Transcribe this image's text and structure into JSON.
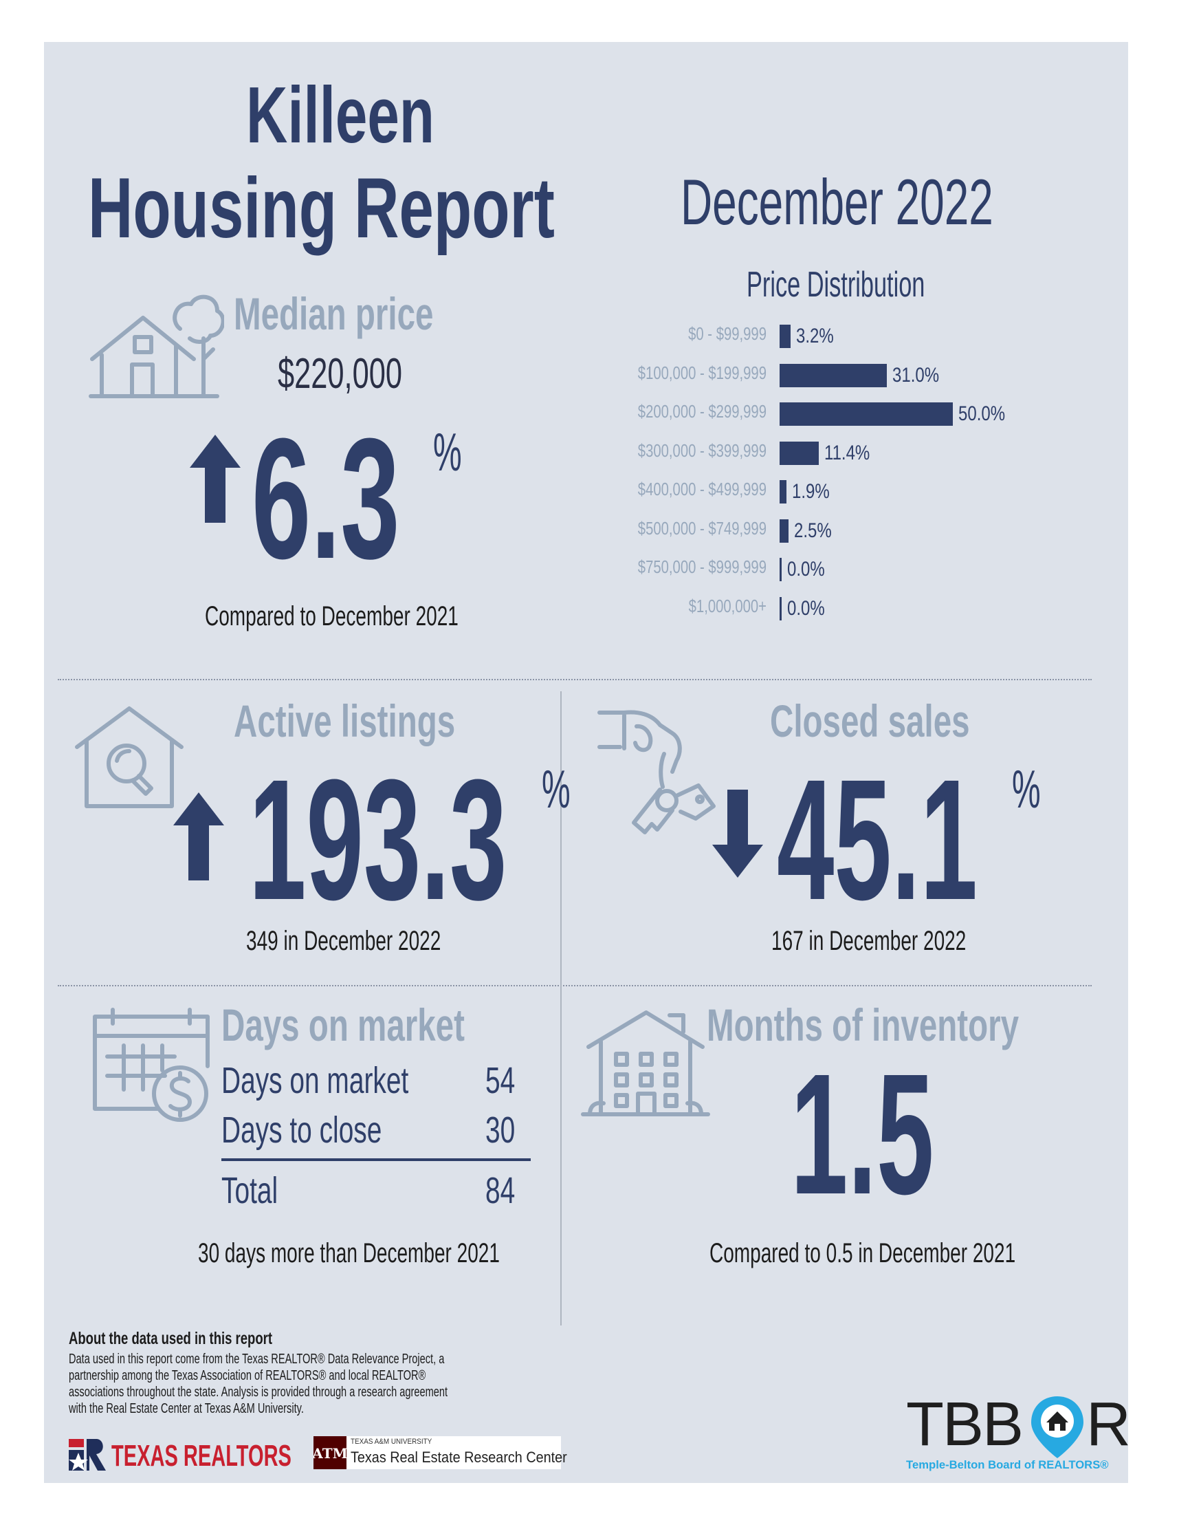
{
  "header": {
    "city": "Killeen",
    "title": "Housing Report",
    "period": "December 2022"
  },
  "median": {
    "label": "Median price",
    "value": "$220,000",
    "change": "6.3",
    "pct": "%",
    "direction": "up",
    "note": "Compared to December 2021"
  },
  "price_distribution": {
    "title": "Price Distribution",
    "rows": [
      {
        "range": "$0 - $99,999",
        "pct": 3.2,
        "label": "3.2%"
      },
      {
        "range": "$100,000 - $199,999",
        "pct": 31.0,
        "label": "31.0%"
      },
      {
        "range": "$200,000 - $299,999",
        "pct": 50.0,
        "label": "50.0%"
      },
      {
        "range": "$300,000 - $399,999",
        "pct": 11.4,
        "label": "11.4%"
      },
      {
        "range": "$400,000 - $499,999",
        "pct": 1.9,
        "label": "1.9%"
      },
      {
        "range": "$500,000 - $749,999",
        "pct": 2.5,
        "label": "2.5%"
      },
      {
        "range": "$750,000 - $999,999",
        "pct": 0.0,
        "label": "0.0%"
      },
      {
        "range": "$1,000,000+",
        "pct": 0.0,
        "label": "0.0%"
      }
    ]
  },
  "chart_data": {
    "type": "bar",
    "title": "Price Distribution",
    "categories": [
      "$0 - $99,999",
      "$100,000 - $199,999",
      "$200,000 - $299,999",
      "$300,000 - $399,999",
      "$400,000 - $499,999",
      "$500,000 - $749,999",
      "$750,000 - $999,999",
      "$1,000,000+"
    ],
    "values": [
      3.2,
      31.0,
      50.0,
      11.4,
      1.9,
      2.5,
      0.0,
      0.0
    ],
    "orientation": "horizontal",
    "unit": "%"
  },
  "active_listings": {
    "label": "Active listings",
    "change": "193.3",
    "pct": "%",
    "direction": "up",
    "note": "349 in December 2022"
  },
  "closed_sales": {
    "label": "Closed sales",
    "change": "45.1",
    "pct": "%",
    "direction": "down",
    "note": "167 in December 2022"
  },
  "days_on_market": {
    "label": "Days on market",
    "rows": [
      {
        "name": "Days on market",
        "value": "54"
      },
      {
        "name": "Days to close",
        "value": "30"
      }
    ],
    "total_label": "Total",
    "total_value": "84",
    "note": "30 days more than December 2021"
  },
  "inventory": {
    "label": "Months of inventory",
    "value": "1.5",
    "note": "Compared to 0.5 in December 2021"
  },
  "footer": {
    "about_title": "About the data used in this report",
    "about_lines": [
      "Data used in this report come from the Texas REALTOR® Data Relevance Project, a",
      "partnership among the Texas Association of REALTORS® and local REALTOR®",
      "associations throughout the state. Analysis is provided through a research agreement",
      "with the Real Estate Center at Texas A&M University."
    ],
    "texas_realtors": "TEXAS REALTORS",
    "tamu_small": "TEXAS A&M UNIVERSITY",
    "tamu_center": "Texas Real Estate Research Center",
    "tbbor_pre": "TBB",
    "tbbor_post": "R",
    "tbbor_sub": "Temple-Belton Board of REALTORS®"
  },
  "colors": {
    "navy": "#2f3f69",
    "grey_text": "#97a8bc",
    "panel_bg": "#dde2ea",
    "tbbor_blue": "#27a9e1"
  }
}
